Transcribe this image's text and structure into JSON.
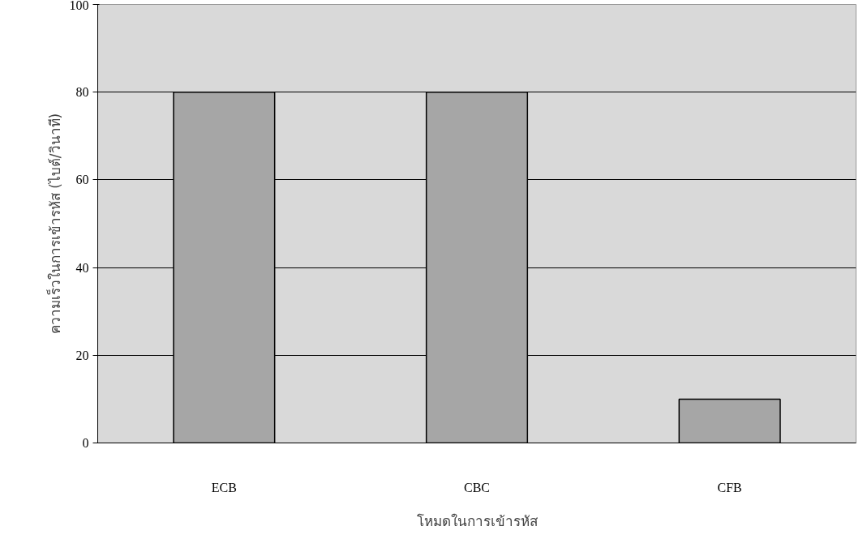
{
  "chart_data": {
    "type": "bar",
    "xlabel": "โหมดในการเข้ารหัส",
    "ylabel": "ความเร็วในการเข้ารหัส (ไบต์/วินาที)",
    "categories": [
      "ECB",
      "CBC",
      "CFB"
    ],
    "values": [
      80,
      80,
      10
    ],
    "color": "#a6a6a6",
    "ylim": [
      0,
      100
    ],
    "yticks": [
      0,
      20,
      40,
      60,
      80,
      100
    ],
    "grid": "y"
  }
}
